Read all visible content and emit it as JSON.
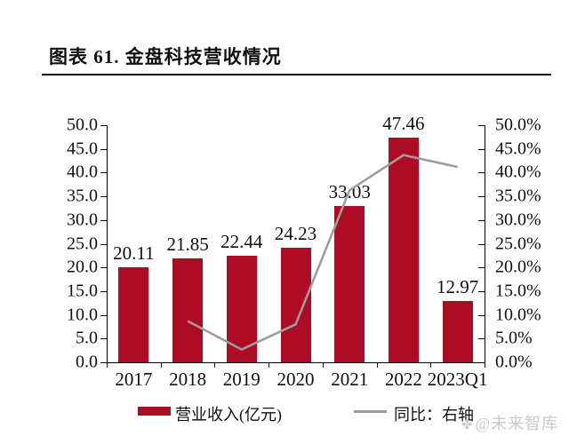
{
  "header": {
    "title": "图表 61. 金盘科技营收情况"
  },
  "chart_data": {
    "type": "bar",
    "title": "金盘科技营收情况",
    "categories": [
      "2017",
      "2018",
      "2019",
      "2020",
      "2021",
      "2022",
      "2023Q1"
    ],
    "series": [
      {
        "name": "营业收入(亿元)",
        "type": "bar",
        "axis": "left",
        "values": [
          20.11,
          21.85,
          22.44,
          24.23,
          33.03,
          47.46,
          12.97
        ],
        "data_labels": [
          "20.11",
          "21.85",
          "22.44",
          "24.23",
          "33.03",
          "47.46",
          "12.97"
        ]
      },
      {
        "name": "同比：右轴",
        "type": "line",
        "axis": "right",
        "values": [
          null,
          8.7,
          2.7,
          8.0,
          36.3,
          43.7,
          41.2
        ]
      }
    ],
    "left_axis": {
      "min": 0,
      "max": 50,
      "step": 5,
      "tick_labels": [
        "50.0",
        "45.0",
        "40.0",
        "35.0",
        "30.0",
        "25.0",
        "20.0",
        "15.0",
        "10.0",
        "5.0",
        "0.0"
      ]
    },
    "right_axis": {
      "min": 0,
      "max": 50,
      "step": 5,
      "unit": "%",
      "tick_labels": [
        "50.0%",
        "45.0%",
        "40.0%",
        "35.0%",
        "30.0%",
        "25.0%",
        "20.0%",
        "15.0%",
        "10.0%",
        "5.0%",
        "0.0%"
      ]
    },
    "colors": {
      "bar": "#AE0C25",
      "line": "#9D9D9D",
      "axis": "#000000"
    },
    "grid": false,
    "legend_position": "bottom"
  },
  "legend": {
    "bar_label": "营业收入(亿元)",
    "line_label": "同比：右轴"
  },
  "watermark": {
    "icon": "clover",
    "icon_glyph": "✤",
    "text": "@未来智库"
  }
}
